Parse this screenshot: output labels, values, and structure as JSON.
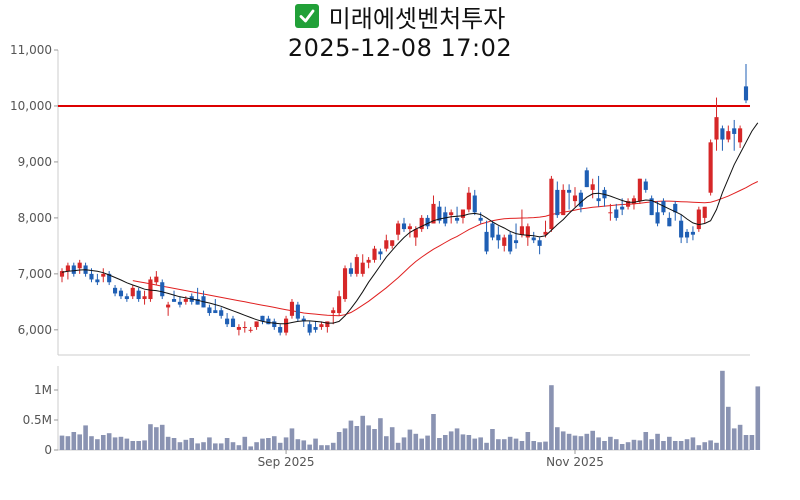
{
  "header": {
    "icon": "check-mark-icon",
    "stock_name": "미래에셋벤처투자",
    "timestamp": "2025-12-08 17:02"
  },
  "colors": {
    "up": "#d62728",
    "down": "#1f5fb4",
    "ma_short": "#111111",
    "ma_long": "#e02020",
    "ref_line": "#dd0000",
    "volume": "#8a93b2",
    "check": "#21a038"
  },
  "chart_data": [
    {
      "type": "candlestick",
      "title": "",
      "ylim": [
        5550,
        11000
      ],
      "yticks": [
        6000,
        7000,
        8000,
        9000,
        10000,
        11000
      ],
      "ytick_labels": [
        "6,000",
        "7,000",
        "8,000",
        "9,000",
        "10,000",
        "11,000"
      ],
      "xticks": [
        {
          "index": 38,
          "label": "Sep 2025"
        },
        {
          "index": 87,
          "label": "Nov 2025"
        }
      ],
      "reference_line": 10000,
      "ohlc": [
        [
          6950,
          7100,
          6850,
          7050
        ],
        [
          7050,
          7200,
          6900,
          7150
        ],
        [
          7150,
          7200,
          6950,
          7000
        ],
        [
          7100,
          7250,
          7000,
          7200
        ],
        [
          7150,
          7200,
          6950,
          7000
        ],
        [
          7000,
          7100,
          6850,
          6900
        ],
        [
          6900,
          7000,
          6800,
          6850
        ],
        [
          6950,
          7100,
          6850,
          7000
        ],
        [
          7000,
          7050,
          6800,
          6850
        ],
        [
          6750,
          6800,
          6600,
          6650
        ],
        [
          6700,
          6750,
          6550,
          6600
        ],
        [
          6600,
          6650,
          6500,
          6550
        ],
        [
          6600,
          6800,
          6550,
          6750
        ],
        [
          6700,
          6750,
          6500,
          6550
        ],
        [
          6550,
          6700,
          6450,
          6600
        ],
        [
          6550,
          6950,
          6500,
          6900
        ],
        [
          6850,
          7050,
          6800,
          6950
        ],
        [
          6850,
          6900,
          6550,
          6600
        ],
        [
          6400,
          6500,
          6250,
          6450
        ],
        [
          6550,
          6700,
          6500,
          6500
        ],
        [
          6500,
          6600,
          6400,
          6450
        ],
        [
          6500,
          6600,
          6450,
          6550
        ],
        [
          6600,
          6650,
          6450,
          6500
        ],
        [
          6550,
          6750,
          6450,
          6450
        ],
        [
          6600,
          6700,
          6400,
          6400
        ],
        [
          6400,
          6450,
          6250,
          6300
        ],
        [
          6350,
          6550,
          6300,
          6300
        ],
        [
          6350,
          6400,
          6200,
          6250
        ],
        [
          6200,
          6300,
          6050,
          6100
        ],
        [
          6200,
          6250,
          6050,
          6050
        ],
        [
          6000,
          6100,
          5900,
          6050
        ],
        [
          6050,
          6150,
          5950,
          6050
        ],
        [
          6000,
          6050,
          5950,
          6000
        ],
        [
          6050,
          6150,
          6000,
          6150
        ],
        [
          6250,
          6250,
          6100,
          6150
        ],
        [
          6200,
          6250,
          6100,
          6100
        ],
        [
          6150,
          6200,
          6000,
          6050
        ],
        [
          6050,
          6100,
          5900,
          5950
        ],
        [
          5950,
          6250,
          5900,
          6200
        ],
        [
          6250,
          6550,
          6200,
          6500
        ],
        [
          6450,
          6500,
          6150,
          6200
        ],
        [
          6200,
          6250,
          6050,
          6150
        ],
        [
          6100,
          6150,
          5900,
          5950
        ],
        [
          6050,
          6150,
          5950,
          6000
        ],
        [
          6050,
          6150,
          6000,
          6100
        ],
        [
          6050,
          6150,
          5950,
          6150
        ],
        [
          6300,
          6400,
          6100,
          6350
        ],
        [
          6300,
          6700,
          6250,
          6600
        ],
        [
          6550,
          7150,
          6500,
          7100
        ],
        [
          7100,
          7200,
          6950,
          7000
        ],
        [
          7000,
          7350,
          6950,
          7300
        ],
        [
          7000,
          7350,
          6950,
          7200
        ],
        [
          7200,
          7300,
          7100,
          7250
        ],
        [
          7250,
          7500,
          7200,
          7450
        ],
        [
          7400,
          7450,
          7250,
          7350
        ],
        [
          7450,
          7700,
          7400,
          7600
        ],
        [
          7500,
          7600,
          7450,
          7600
        ],
        [
          7700,
          7950,
          7600,
          7900
        ],
        [
          7900,
          8000,
          7750,
          7800
        ],
        [
          7800,
          7900,
          7650,
          7850
        ],
        [
          7650,
          7850,
          7500,
          7800
        ],
        [
          7800,
          8050,
          7750,
          8000
        ],
        [
          8000,
          8050,
          7800,
          7850
        ],
        [
          7900,
          8400,
          7900,
          8250
        ],
        [
          8200,
          8300,
          7900,
          7950
        ],
        [
          8100,
          8200,
          7850,
          7900
        ],
        [
          8050,
          8150,
          7900,
          8100
        ],
        [
          8000,
          8200,
          7900,
          7950
        ],
        [
          8000,
          8150,
          7900,
          8150
        ],
        [
          8150,
          8550,
          8100,
          8450
        ],
        [
          8400,
          8500,
          8050,
          8100
        ],
        [
          8000,
          8100,
          7900,
          7950
        ],
        [
          7750,
          7950,
          7350,
          7400
        ],
        [
          7900,
          7950,
          7600,
          7650
        ],
        [
          7700,
          7850,
          7450,
          7600
        ],
        [
          7500,
          7700,
          7400,
          7650
        ],
        [
          7700,
          7750,
          7350,
          7400
        ],
        [
          7600,
          7900,
          7450,
          7550
        ],
        [
          7700,
          8150,
          7650,
          7850
        ],
        [
          7650,
          7900,
          7500,
          7850
        ],
        [
          7650,
          7750,
          7550,
          7600
        ],
        [
          7600,
          7650,
          7350,
          7500
        ],
        [
          7700,
          7950,
          7650,
          7750
        ],
        [
          7800,
          8750,
          7750,
          8700
        ],
        [
          8500,
          8650,
          8000,
          8050
        ],
        [
          8050,
          8600,
          8050,
          8500
        ],
        [
          8500,
          8600,
          8150,
          8450
        ],
        [
          8300,
          8550,
          8200,
          8400
        ],
        [
          8450,
          8500,
          8100,
          8200
        ],
        [
          8850,
          8900,
          8550,
          8550
        ],
        [
          8500,
          8700,
          8350,
          8600
        ],
        [
          8350,
          8750,
          8200,
          8300
        ],
        [
          8500,
          8550,
          8200,
          8350
        ],
        [
          8100,
          8250,
          7950,
          8100
        ],
        [
          8150,
          8250,
          7950,
          8000
        ],
        [
          8200,
          8350,
          8050,
          8150
        ],
        [
          8200,
          8350,
          8150,
          8300
        ],
        [
          8250,
          8400,
          8150,
          8350
        ],
        [
          8300,
          8700,
          8250,
          8700
        ],
        [
          8650,
          8700,
          8450,
          8500
        ],
        [
          8350,
          8400,
          8050,
          8050
        ],
        [
          8100,
          8300,
          7850,
          7900
        ],
        [
          8300,
          8350,
          8050,
          8100
        ],
        [
          8000,
          8100,
          7850,
          7850
        ],
        [
          8250,
          8300,
          7950,
          8100
        ],
        [
          7950,
          8050,
          7550,
          7650
        ],
        [
          7750,
          7800,
          7550,
          7650
        ],
        [
          7750,
          7850,
          7600,
          7700
        ],
        [
          7800,
          8200,
          7750,
          8150
        ],
        [
          8000,
          8200,
          7900,
          8200
        ],
        [
          8450,
          9400,
          8400,
          9350
        ],
        [
          9400,
          10150,
          9200,
          9800
        ],
        [
          9600,
          9650,
          9200,
          9400
        ],
        [
          9400,
          9650,
          9350,
          9550
        ],
        [
          9600,
          9750,
          9200,
          9500
        ],
        [
          9350,
          9650,
          9250,
          9600
        ],
        [
          10350,
          10750,
          10050,
          10100
        ]
      ],
      "ma_short": [
        7030,
        7045,
        7055,
        7068,
        7075,
        7060,
        7045,
        7020,
        6980,
        6935,
        6890,
        6840,
        6800,
        6765,
        6725,
        6710,
        6700,
        6680,
        6650,
        6620,
        6590,
        6570,
        6550,
        6530,
        6500,
        6480,
        6450,
        6420,
        6380,
        6340,
        6300,
        6260,
        6220,
        6180,
        6150,
        6130,
        6120,
        6110,
        6110,
        6130,
        6150,
        6160,
        6160,
        6150,
        6140,
        6120,
        6120,
        6150,
        6250,
        6380,
        6520,
        6680,
        6850,
        7000,
        7150,
        7300,
        7420,
        7540,
        7650,
        7740,
        7800,
        7850,
        7900,
        7950,
        7980,
        8000,
        8020,
        8030,
        8040,
        8070,
        8080,
        8060,
        8000,
        7930,
        7870,
        7820,
        7760,
        7720,
        7700,
        7690,
        7680,
        7660,
        7680,
        7780,
        7880,
        7970,
        8080,
        8180,
        8280,
        8370,
        8430,
        8440,
        8420,
        8390,
        8350,
        8310,
        8280,
        8280,
        8300,
        8320,
        8310,
        8260,
        8210,
        8160,
        8110,
        8060,
        7980,
        7910,
        7880,
        7900,
        7950,
        8150,
        8450,
        8700,
        8950,
        9150,
        9350,
        9550,
        9700
      ],
      "ma_long": [
        null,
        null,
        null,
        null,
        null,
        null,
        null,
        null,
        null,
        null,
        null,
        null,
        6880,
        6860,
        6840,
        6820,
        6800,
        6780,
        6760,
        6740,
        6720,
        6700,
        6680,
        6660,
        6640,
        6620,
        6600,
        6580,
        6560,
        6540,
        6520,
        6500,
        6480,
        6460,
        6440,
        6420,
        6400,
        6380,
        6360,
        6340,
        6320,
        6300,
        6290,
        6280,
        6270,
        6260,
        6255,
        6250,
        6270,
        6310,
        6370,
        6440,
        6510,
        6590,
        6670,
        6750,
        6840,
        6930,
        7030,
        7130,
        7220,
        7300,
        7370,
        7440,
        7500,
        7560,
        7620,
        7670,
        7730,
        7790,
        7840,
        7890,
        7920,
        7950,
        7970,
        7985,
        7990,
        7995,
        7998,
        8000,
        8005,
        8015,
        8030,
        8060,
        8080,
        8100,
        8120,
        8140,
        8160,
        8175,
        8190,
        8200,
        8210,
        8220,
        8230,
        8240,
        8245,
        8250,
        8260,
        8275,
        8285,
        8295,
        8300,
        8300,
        8295,
        8290,
        8285,
        8280,
        8275,
        8270,
        8280,
        8310,
        8350,
        8390,
        8440,
        8490,
        8540,
        8600,
        8650
      ]
    },
    {
      "type": "bar",
      "title": "",
      "ylim": [
        0,
        1400000
      ],
      "yticks": [
        0,
        500000,
        1000000
      ],
      "ytick_labels": [
        "0",
        "0.5M",
        "1M"
      ],
      "volume": [
        240000,
        230000,
        300000,
        260000,
        410000,
        230000,
        180000,
        250000,
        280000,
        210000,
        220000,
        190000,
        150000,
        150000,
        160000,
        430000,
        380000,
        420000,
        220000,
        200000,
        130000,
        170000,
        200000,
        110000,
        130000,
        210000,
        110000,
        110000,
        200000,
        130000,
        80000,
        220000,
        60000,
        130000,
        190000,
        200000,
        230000,
        120000,
        210000,
        360000,
        180000,
        160000,
        90000,
        190000,
        80000,
        80000,
        120000,
        300000,
        360000,
        490000,
        400000,
        570000,
        410000,
        350000,
        530000,
        230000,
        380000,
        120000,
        210000,
        340000,
        270000,
        190000,
        240000,
        600000,
        200000,
        250000,
        310000,
        360000,
        260000,
        250000,
        190000,
        210000,
        120000,
        350000,
        180000,
        180000,
        220000,
        190000,
        150000,
        300000,
        150000,
        130000,
        140000,
        1080000,
        380000,
        310000,
        270000,
        240000,
        230000,
        270000,
        320000,
        210000,
        150000,
        220000,
        180000,
        100000,
        130000,
        170000,
        160000,
        300000,
        180000,
        270000,
        150000,
        220000,
        150000,
        150000,
        180000,
        210000,
        80000,
        130000,
        160000,
        120000,
        1320000,
        720000,
        360000,
        420000,
        250000,
        250000,
        1060000
      ]
    }
  ]
}
